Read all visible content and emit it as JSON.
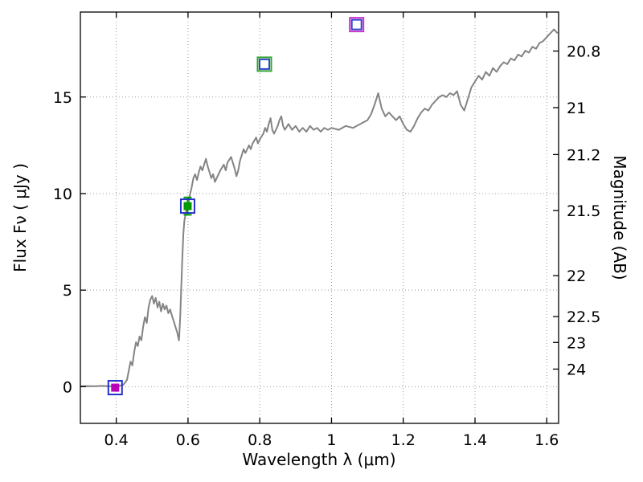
{
  "figure": {
    "background": "#ffffff"
  },
  "chart_data": {
    "type": "line",
    "title": "",
    "xlabel": "Wavelength  λ (μm)",
    "ylabel": "Flux  Fν  ( μJy )",
    "ylabel_right": "Magnitude (AB)",
    "xlim": [
      0.3,
      1.633
    ],
    "ylim": [
      -1.9,
      19.4
    ],
    "grid": true,
    "line_color": "#848484",
    "x_ticks": [
      {
        "label": "0.4",
        "value": 0.4
      },
      {
        "label": "0.6",
        "value": 0.6
      },
      {
        "label": "0.8",
        "value": 0.8
      },
      {
        "label": "1",
        "value": 1.0
      },
      {
        "label": "1.2",
        "value": 1.2
      },
      {
        "label": "1.4",
        "value": 1.4
      },
      {
        "label": "1.6",
        "value": 1.6
      }
    ],
    "y_ticks_left": [
      {
        "label": "0",
        "value": 0
      },
      {
        "label": "5",
        "value": 5
      },
      {
        "label": "10",
        "value": 10
      },
      {
        "label": "15",
        "value": 15
      }
    ],
    "y_ticks_right": [
      {
        "label": "20.8",
        "flux": 17.38
      },
      {
        "label": "21",
        "flux": 14.45
      },
      {
        "label": "21.2",
        "flux": 12.02
      },
      {
        "label": "21.5",
        "flux": 9.12
      },
      {
        "label": "22",
        "flux": 5.75
      },
      {
        "label": "22.5",
        "flux": 3.63
      },
      {
        "label": "23",
        "flux": 2.29
      },
      {
        "label": "24",
        "flux": 0.91
      }
    ],
    "series": [
      {
        "name": "model-spectrum",
        "color": "#848484",
        "points": [
          [
            0.3,
            0.02
          ],
          [
            0.32,
            0.03
          ],
          [
            0.34,
            0.02
          ],
          [
            0.36,
            0.04
          ],
          [
            0.38,
            0.02
          ],
          [
            0.4,
            0.03
          ],
          [
            0.41,
            0.05
          ],
          [
            0.42,
            0.1
          ],
          [
            0.43,
            0.35
          ],
          [
            0.435,
            0.85
          ],
          [
            0.44,
            1.3
          ],
          [
            0.445,
            1.1
          ],
          [
            0.45,
            1.8
          ],
          [
            0.455,
            2.3
          ],
          [
            0.46,
            2.1
          ],
          [
            0.465,
            2.6
          ],
          [
            0.47,
            2.4
          ],
          [
            0.475,
            3.1
          ],
          [
            0.48,
            3.6
          ],
          [
            0.485,
            3.3
          ],
          [
            0.49,
            4.1
          ],
          [
            0.495,
            4.5
          ],
          [
            0.5,
            4.7
          ],
          [
            0.505,
            4.3
          ],
          [
            0.51,
            4.6
          ],
          [
            0.515,
            4.1
          ],
          [
            0.52,
            4.4
          ],
          [
            0.525,
            3.9
          ],
          [
            0.53,
            4.3
          ],
          [
            0.535,
            4.0
          ],
          [
            0.54,
            4.2
          ],
          [
            0.545,
            3.8
          ],
          [
            0.55,
            4.0
          ],
          [
            0.555,
            3.7
          ],
          [
            0.56,
            3.4
          ],
          [
            0.565,
            3.1
          ],
          [
            0.57,
            2.8
          ],
          [
            0.575,
            2.4
          ],
          [
            0.578,
            3.5
          ],
          [
            0.581,
            5.0
          ],
          [
            0.584,
            6.6
          ],
          [
            0.587,
            7.9
          ],
          [
            0.59,
            8.6
          ],
          [
            0.595,
            9.1
          ],
          [
            0.6,
            9.4
          ],
          [
            0.605,
            9.9
          ],
          [
            0.61,
            10.3
          ],
          [
            0.615,
            10.8
          ],
          [
            0.62,
            11.0
          ],
          [
            0.625,
            10.7
          ],
          [
            0.63,
            11.1
          ],
          [
            0.635,
            11.4
          ],
          [
            0.64,
            11.2
          ],
          [
            0.645,
            11.5
          ],
          [
            0.65,
            11.8
          ],
          [
            0.655,
            11.4
          ],
          [
            0.66,
            11.1
          ],
          [
            0.665,
            10.8
          ],
          [
            0.67,
            11.0
          ],
          [
            0.675,
            10.6
          ],
          [
            0.68,
            10.8
          ],
          [
            0.69,
            11.2
          ],
          [
            0.7,
            11.5
          ],
          [
            0.705,
            11.2
          ],
          [
            0.71,
            11.6
          ],
          [
            0.72,
            11.9
          ],
          [
            0.725,
            11.6
          ],
          [
            0.73,
            11.3
          ],
          [
            0.735,
            10.9
          ],
          [
            0.74,
            11.2
          ],
          [
            0.745,
            11.7
          ],
          [
            0.75,
            12.0
          ],
          [
            0.755,
            12.3
          ],
          [
            0.76,
            12.1
          ],
          [
            0.77,
            12.5
          ],
          [
            0.775,
            12.3
          ],
          [
            0.78,
            12.6
          ],
          [
            0.79,
            12.9
          ],
          [
            0.795,
            12.6
          ],
          [
            0.8,
            12.8
          ],
          [
            0.81,
            13.1
          ],
          [
            0.815,
            13.4
          ],
          [
            0.82,
            13.2
          ],
          [
            0.825,
            13.6
          ],
          [
            0.83,
            13.9
          ],
          [
            0.835,
            13.3
          ],
          [
            0.84,
            13.1
          ],
          [
            0.85,
            13.5
          ],
          [
            0.855,
            13.8
          ],
          [
            0.86,
            14.0
          ],
          [
            0.865,
            13.5
          ],
          [
            0.87,
            13.3
          ],
          [
            0.88,
            13.6
          ],
          [
            0.89,
            13.3
          ],
          [
            0.9,
            13.5
          ],
          [
            0.91,
            13.2
          ],
          [
            0.92,
            13.4
          ],
          [
            0.93,
            13.2
          ],
          [
            0.94,
            13.5
          ],
          [
            0.95,
            13.3
          ],
          [
            0.96,
            13.4
          ],
          [
            0.97,
            13.2
          ],
          [
            0.98,
            13.4
          ],
          [
            0.99,
            13.3
          ],
          [
            1.0,
            13.4
          ],
          [
            1.02,
            13.3
          ],
          [
            1.04,
            13.5
          ],
          [
            1.06,
            13.4
          ],
          [
            1.08,
            13.6
          ],
          [
            1.1,
            13.8
          ],
          [
            1.11,
            14.1
          ],
          [
            1.12,
            14.6
          ],
          [
            1.13,
            15.2
          ],
          [
            1.14,
            14.4
          ],
          [
            1.15,
            14.0
          ],
          [
            1.16,
            14.2
          ],
          [
            1.17,
            14.0
          ],
          [
            1.18,
            13.8
          ],
          [
            1.19,
            14.0
          ],
          [
            1.2,
            13.6
          ],
          [
            1.21,
            13.3
          ],
          [
            1.22,
            13.2
          ],
          [
            1.23,
            13.5
          ],
          [
            1.24,
            13.9
          ],
          [
            1.25,
            14.2
          ],
          [
            1.26,
            14.4
          ],
          [
            1.27,
            14.3
          ],
          [
            1.28,
            14.6
          ],
          [
            1.29,
            14.8
          ],
          [
            1.3,
            15.0
          ],
          [
            1.31,
            15.1
          ],
          [
            1.32,
            15.0
          ],
          [
            1.33,
            15.2
          ],
          [
            1.34,
            15.1
          ],
          [
            1.35,
            15.3
          ],
          [
            1.36,
            14.6
          ],
          [
            1.37,
            14.3
          ],
          [
            1.38,
            14.9
          ],
          [
            1.39,
            15.5
          ],
          [
            1.4,
            15.8
          ],
          [
            1.41,
            16.1
          ],
          [
            1.42,
            15.9
          ],
          [
            1.43,
            16.3
          ],
          [
            1.44,
            16.1
          ],
          [
            1.45,
            16.5
          ],
          [
            1.46,
            16.3
          ],
          [
            1.47,
            16.6
          ],
          [
            1.48,
            16.8
          ],
          [
            1.49,
            16.7
          ],
          [
            1.5,
            17.0
          ],
          [
            1.51,
            16.9
          ],
          [
            1.52,
            17.2
          ],
          [
            1.53,
            17.1
          ],
          [
            1.54,
            17.4
          ],
          [
            1.55,
            17.3
          ],
          [
            1.56,
            17.6
          ],
          [
            1.57,
            17.5
          ],
          [
            1.58,
            17.8
          ],
          [
            1.59,
            17.9
          ],
          [
            1.6,
            18.1
          ],
          [
            1.61,
            18.3
          ],
          [
            1.62,
            18.5
          ],
          [
            1.63,
            18.3
          ]
        ]
      }
    ],
    "markers": [
      {
        "name": "photometry-point-1",
        "x": 0.397,
        "flux": -0.05,
        "outer_color": "#2233cc",
        "inner_color": "#bb00bb",
        "inner_filled": true,
        "err": 0
      },
      {
        "name": "photometry-point-2",
        "x": 0.599,
        "flux": 9.35,
        "outer_color": "#2233cc",
        "inner_color": "#009900",
        "inner_filled": true,
        "err": 0.45
      },
      {
        "name": "photometry-point-3",
        "x": 0.813,
        "flux": 16.7,
        "outer_color": "#2fa42f",
        "inner_color": "#3344cc",
        "inner_filled": false,
        "err": 0
      },
      {
        "name": "photometry-point-4",
        "x": 1.07,
        "flux": 18.75,
        "outer_color": "#cc33cc",
        "inner_color": "#3344cc",
        "inner_filled": false,
        "err": 0
      }
    ]
  }
}
